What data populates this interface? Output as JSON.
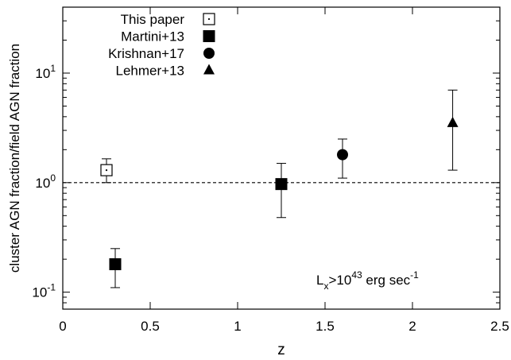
{
  "chart_data": {
    "type": "scatter",
    "title": "",
    "xlabel": "z",
    "ylabel": "cluster AGN fraction/field AGN fraction",
    "xlim": [
      0,
      2.5
    ],
    "ylim": [
      0.07,
      40
    ],
    "yscale": "log",
    "grid": false,
    "legend_position": "top-left",
    "x_ticks": [
      0,
      0.5,
      1,
      1.5,
      2,
      2.5
    ],
    "x_tick_labels": [
      "0",
      "0.5",
      "1",
      "1.5",
      "2",
      "2.5"
    ],
    "y_ticks": [
      {
        "value": 0.1,
        "base": "10",
        "exp": "-1"
      },
      {
        "value": 1,
        "base": "10",
        "exp": "0"
      },
      {
        "value": 10,
        "base": "10",
        "exp": "1"
      }
    ],
    "reference_line": {
      "y": 1.0,
      "style": "dashed"
    },
    "annotation": {
      "base": "L",
      "sub": "x",
      "mid": ">10",
      "sup1": "43",
      "tail": " erg sec",
      "sup2": "-1"
    },
    "series": [
      {
        "name": "This paper",
        "marker": "open-square",
        "points": [
          {
            "x": 0.25,
            "y": 1.3,
            "ylo": 1.0,
            "yhi": 1.65
          }
        ]
      },
      {
        "name": "Martini+13",
        "marker": "filled-square",
        "points": [
          {
            "x": 0.3,
            "y": 0.18,
            "ylo": 0.11,
            "yhi": 0.25
          },
          {
            "x": 1.25,
            "y": 0.97,
            "ylo": 0.48,
            "yhi": 1.5
          }
        ]
      },
      {
        "name": "Krishnan+17",
        "marker": "filled-circle",
        "points": [
          {
            "x": 1.6,
            "y": 1.8,
            "ylo": 1.1,
            "yhi": 2.5
          }
        ]
      },
      {
        "name": "Lehmer+13",
        "marker": "filled-triangle",
        "points": [
          {
            "x": 2.23,
            "y": 3.5,
            "ylo": 1.3,
            "yhi": 7.0
          }
        ]
      }
    ]
  }
}
